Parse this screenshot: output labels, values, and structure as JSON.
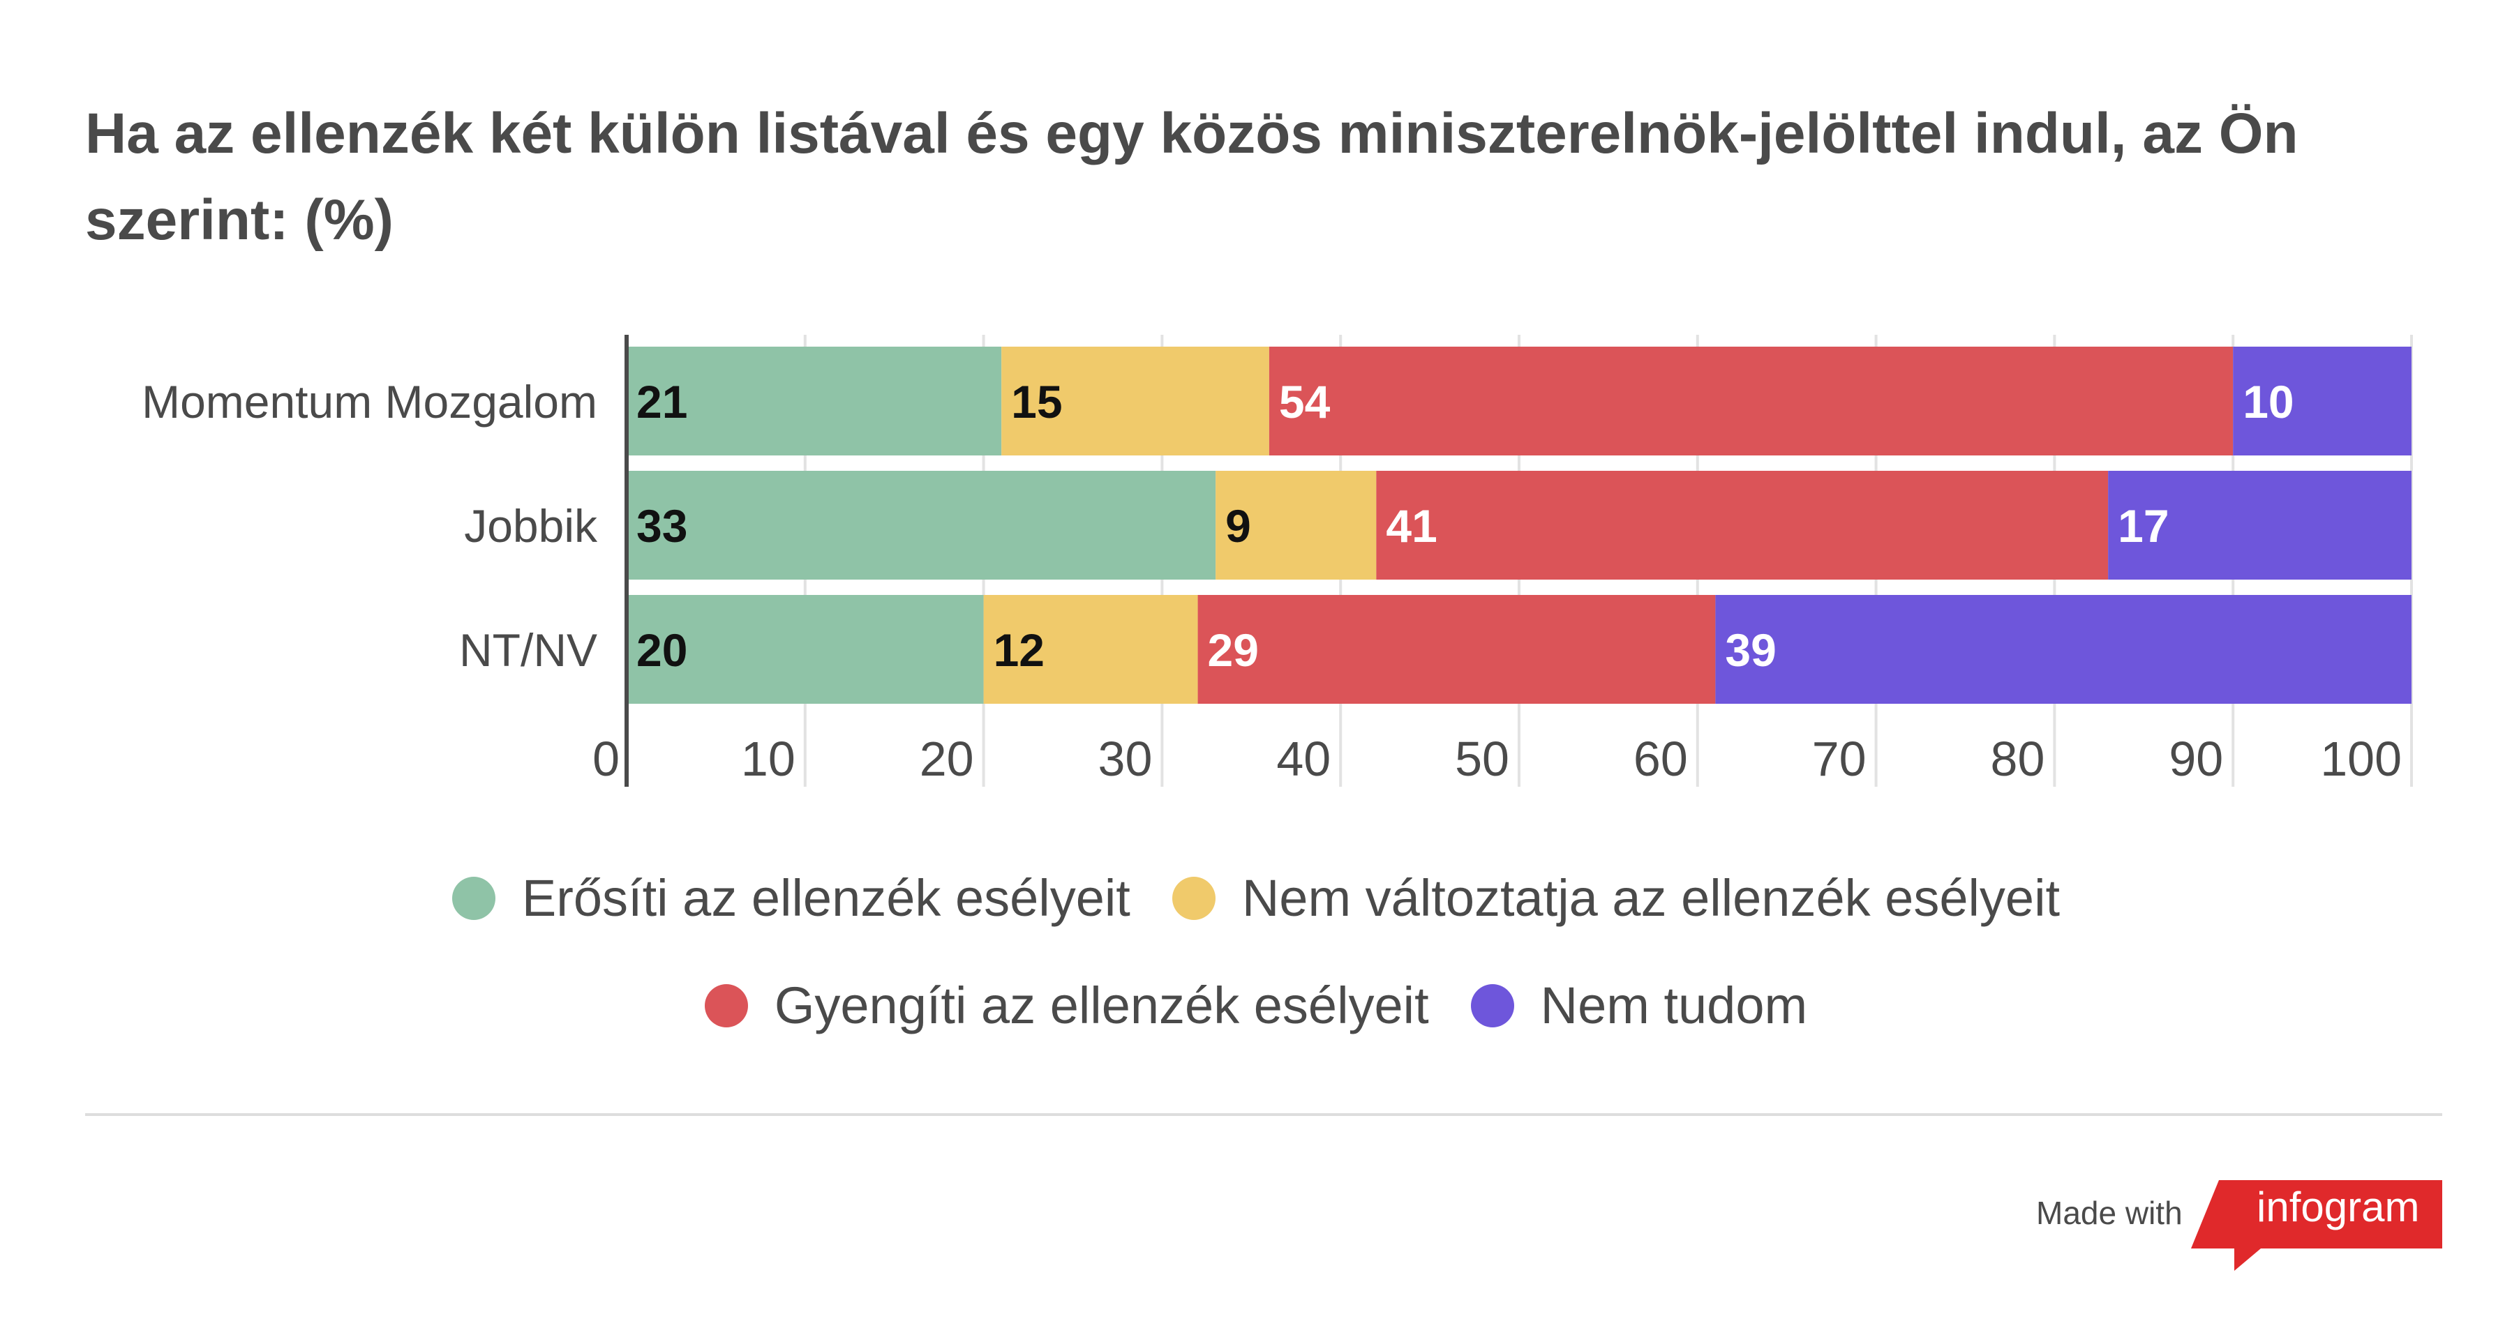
{
  "title": "Ha az ellenzék két külön listával és egy közös miniszterelnök-jelölttel indul, az Ön szerint: (%)",
  "chart_data": {
    "type": "bar",
    "orientation": "horizontal",
    "stacked": true,
    "categories": [
      "Momentum Mozgalom",
      "Jobbik",
      "NT/NV"
    ],
    "series": [
      {
        "name": "Erősíti az ellenzék esélyeit",
        "color": "#8fc3a7",
        "label_color": "#111111",
        "values": [
          21,
          33,
          20
        ]
      },
      {
        "name": "Nem változtatja az ellenzék esélyeit",
        "color": "#f0ca6b",
        "label_color": "#111111",
        "values": [
          15,
          9,
          12
        ]
      },
      {
        "name": "Gyengíti az ellenzék esélyeit",
        "color": "#db5458",
        "label_color": "#ffffff",
        "values": [
          54,
          41,
          29
        ]
      },
      {
        "name": "Nem tudom",
        "color": "#6e56db",
        "label_color": "#ffffff",
        "values": [
          10,
          17,
          39
        ]
      }
    ],
    "xlim": [
      0,
      100
    ],
    "xticks": [
      0,
      10,
      20,
      30,
      40,
      50,
      60,
      70,
      80,
      90,
      100
    ],
    "grid": true,
    "legend_position": "bottom"
  },
  "footer": {
    "made_with": "Made with",
    "brand": "infogram",
    "brand_color": "#e0292b"
  }
}
